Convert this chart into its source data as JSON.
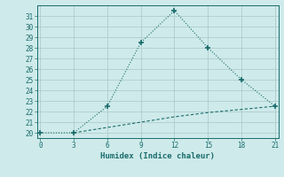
{
  "line1_x": [
    0,
    3,
    6,
    9,
    12,
    15,
    18,
    21
  ],
  "line1_y": [
    20,
    20,
    22.5,
    28.5,
    31.5,
    28,
    25,
    22.5
  ],
  "line2_x": [
    3,
    6,
    9,
    12,
    15,
    18,
    21
  ],
  "line2_y": [
    20,
    20.5,
    21.0,
    21.5,
    21.9,
    22.2,
    22.5
  ],
  "line_color": "#1a6b6b",
  "marker": "+",
  "marker_size": 5,
  "marker_lw": 1.2,
  "xlabel": "Humidex (Indice chaleur)",
  "xlim": [
    -0.3,
    21.3
  ],
  "ylim": [
    19.5,
    32.0
  ],
  "xticks": [
    0,
    3,
    6,
    9,
    12,
    15,
    18,
    21
  ],
  "yticks": [
    20,
    21,
    22,
    23,
    24,
    25,
    26,
    27,
    28,
    29,
    30,
    31
  ],
  "bg_color": "#ceeaea",
  "grid_color": "#b0cccc",
  "font_color": "#1a6b6b",
  "tick_fontsize": 5.5,
  "xlabel_fontsize": 6.5
}
